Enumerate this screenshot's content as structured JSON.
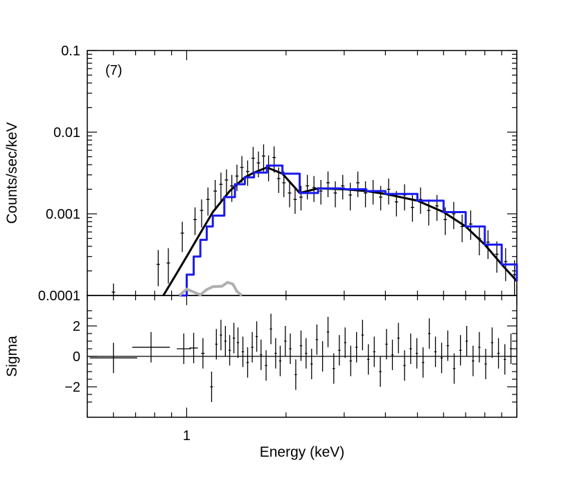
{
  "chart_data": {
    "type": "scatter",
    "x_scale": "log",
    "panel_label": "(7)",
    "xlabel": "Energy (keV)",
    "xlim": [
      0.5,
      10.0
    ],
    "x_tick_labels": [
      {
        "value": 1,
        "label": "1"
      }
    ],
    "top_panel": {
      "ylabel": "Counts/sec/keV",
      "y_scale": "log",
      "ylim": [
        0.0001,
        0.1
      ],
      "y_tick_labels": [
        {
          "value": 0.1,
          "label": "0.1"
        },
        {
          "value": 0.01,
          "label": "0.01"
        },
        {
          "value": 0.001,
          "label": "0.001"
        },
        {
          "value": 0.0001,
          "label": "0.0001"
        }
      ],
      "series": [
        {
          "name": "model-black",
          "color": "#000000",
          "style": "line",
          "x": [
            0.85,
            0.92,
            1.0,
            1.1,
            1.2,
            1.35,
            1.5,
            1.6,
            1.75,
            1.95,
            2.2,
            2.5,
            3.0,
            3.5,
            4.0,
            5.0,
            6.0,
            7.0,
            8.0,
            9.0,
            10.0
          ],
          "y": [
            0.0001,
            0.00017,
            0.0003,
            0.00058,
            0.00105,
            0.0019,
            0.0028,
            0.0032,
            0.0037,
            0.0031,
            0.0018,
            0.00205,
            0.002,
            0.0019,
            0.00175,
            0.00145,
            0.00105,
            0.0007,
            0.00042,
            0.00024,
            0.00015
          ]
        },
        {
          "name": "model-blue",
          "color": "#1a1aee",
          "style": "step",
          "x": [
            0.95,
            1.0,
            1.05,
            1.1,
            1.15,
            1.2,
            1.3,
            1.4,
            1.5,
            1.6,
            1.75,
            1.95,
            2.2,
            2.5,
            3.0,
            3.5,
            4.0,
            5.0,
            6.0,
            7.0,
            8.0,
            9.0,
            10.0
          ],
          "y": [
            0.0001,
            0.00018,
            0.0003,
            0.00048,
            0.0007,
            0.00095,
            0.0016,
            0.0023,
            0.0028,
            0.0032,
            0.0039,
            0.0031,
            0.0018,
            0.00205,
            0.002,
            0.0019,
            0.00175,
            0.00145,
            0.00105,
            0.0007,
            0.00042,
            0.00024,
            0.00015
          ]
        },
        {
          "name": "model-gray",
          "color": "#b0b0b0",
          "style": "line",
          "x": [
            0.95,
            1.0,
            1.05,
            1.1,
            1.15,
            1.2,
            1.28,
            1.33,
            1.38,
            1.42,
            1.47
          ],
          "y": [
            0.0001,
            0.00012,
            0.00011,
            0.000102,
            0.000118,
            0.000128,
            0.00013,
            0.000145,
            0.000138,
            0.000112,
            0.0001
          ]
        }
      ],
      "data_points": {
        "name": "observed",
        "x": [
          0.6,
          0.82,
          0.88,
          0.97,
          1.06,
          1.11,
          1.16,
          1.22,
          1.27,
          1.32,
          1.37,
          1.42,
          1.47,
          1.53,
          1.59,
          1.65,
          1.71,
          1.77,
          1.84,
          1.9,
          1.97,
          2.05,
          2.13,
          2.22,
          2.32,
          2.43,
          2.55,
          2.68,
          2.82,
          2.97,
          3.13,
          3.3,
          3.48,
          3.67,
          3.87,
          4.09,
          4.32,
          4.57,
          4.83,
          5.11,
          5.41,
          5.73,
          6.07,
          6.44,
          6.83,
          7.25,
          7.7,
          8.18,
          8.7,
          9.25,
          9.84
        ],
        "y": [
          0.00011,
          0.00024,
          0.00025,
          0.00058,
          0.00085,
          0.0011,
          0.0015,
          0.0019,
          0.0023,
          0.0026,
          0.0022,
          0.0029,
          0.0037,
          0.0033,
          0.0048,
          0.0042,
          0.0051,
          0.0038,
          0.0049,
          0.0027,
          0.0024,
          0.0018,
          0.0015,
          0.0016,
          0.0022,
          0.0021,
          0.0019,
          0.0024,
          0.0018,
          0.0022,
          0.0017,
          0.0024,
          0.0018,
          0.0019,
          0.0016,
          0.002,
          0.0014,
          0.0017,
          0.0012,
          0.0015,
          0.0011,
          0.00125,
          0.00085,
          0.001,
          0.0007,
          0.00075,
          0.0005,
          0.00045,
          0.00032,
          0.00026,
          0.00018
        ],
        "y_low": [
          0.0001,
          0.00013,
          0.00014,
          0.00034,
          0.00055,
          0.00068,
          0.00095,
          0.0012,
          0.0014,
          0.0017,
          0.0014,
          0.0019,
          0.0024,
          0.0022,
          0.0031,
          0.0028,
          0.0033,
          0.0025,
          0.0032,
          0.0018,
          0.0016,
          0.0012,
          0.001,
          0.0011,
          0.0015,
          0.0014,
          0.0013,
          0.0016,
          0.0012,
          0.0015,
          0.0011,
          0.0016,
          0.0012,
          0.0013,
          0.0011,
          0.0013,
          0.00093,
          0.0011,
          0.0008,
          0.001,
          0.00072,
          0.00082,
          0.00055,
          0.00065,
          0.00045,
          0.00048,
          0.00031,
          0.00028,
          0.00019,
          0.00015,
          0.0001
        ],
        "y_high": [
          0.00014,
          0.00036,
          0.00038,
          0.0008,
          0.0012,
          0.0015,
          0.0021,
          0.0026,
          0.0032,
          0.0035,
          0.003,
          0.004,
          0.0051,
          0.0045,
          0.0066,
          0.0058,
          0.0071,
          0.0052,
          0.0067,
          0.0037,
          0.0033,
          0.0025,
          0.0021,
          0.0022,
          0.003,
          0.0029,
          0.0026,
          0.0033,
          0.0025,
          0.003,
          0.0024,
          0.0033,
          0.0025,
          0.0026,
          0.0022,
          0.0027,
          0.0019,
          0.0023,
          0.0017,
          0.0021,
          0.0015,
          0.0017,
          0.0012,
          0.0014,
          0.00098,
          0.0011,
          0.0007,
          0.00063,
          0.00046,
          0.00038,
          0.00027
        ]
      }
    },
    "bottom_panel": {
      "ylabel": "Sigma",
      "y_scale": "linear",
      "ylim": [
        -4,
        4
      ],
      "y_tick_labels": [
        {
          "value": 2,
          "label": "2"
        },
        {
          "value": 0,
          "label": "0"
        },
        {
          "value": -2,
          "label": "−2"
        }
      ],
      "zero_line": true,
      "residuals": {
        "x": [
          0.6,
          0.78,
          0.98,
          1.05,
          1.12,
          1.19,
          1.23,
          1.27,
          1.31,
          1.35,
          1.39,
          1.43,
          1.48,
          1.53,
          1.58,
          1.63,
          1.68,
          1.74,
          1.8,
          1.86,
          1.92,
          1.99,
          2.06,
          2.14,
          2.22,
          2.3,
          2.39,
          2.48,
          2.58,
          2.68,
          2.79,
          2.9,
          3.02,
          3.14,
          3.27,
          3.41,
          3.55,
          3.7,
          3.86,
          4.03,
          4.2,
          4.38,
          4.57,
          4.77,
          4.98,
          5.2,
          5.43,
          5.67,
          5.92,
          6.18,
          6.46,
          6.75,
          7.05,
          7.37,
          7.7,
          8.05,
          8.42,
          8.8,
          9.2,
          9.6
        ],
        "y": [
          -0.1,
          0.6,
          0.5,
          0.55,
          0.2,
          -2.0,
          0.8,
          1.4,
          1.0,
          0.4,
          1.2,
          0.9,
          0.3,
          -0.4,
          0.6,
          1.3,
          0.1,
          -0.6,
          1.8,
          0.2,
          -0.3,
          1.0,
          0.5,
          -1.2,
          0.7,
          0.2,
          -0.5,
          1.1,
          0.0,
          1.6,
          -0.8,
          0.4,
          0.9,
          -0.3,
          0.6,
          1.4,
          -0.2,
          0.3,
          -1.0,
          0.8,
          0.1,
          1.2,
          -0.6,
          0.5,
          0.2,
          -0.4,
          1.5,
          0.3,
          -0.1,
          0.7,
          -0.8,
          0.4,
          1.0,
          -0.3,
          0.6,
          -0.5,
          0.9,
          0.2,
          -0.2,
          0.5
        ],
        "x_halfwidth_factor": [
          1.18,
          1.14,
          1.05,
          1.03,
          1.012,
          1.01,
          1.008,
          1.008,
          1.008,
          1.008,
          1.008,
          1.008,
          1.008,
          1.008,
          1.008,
          1.008,
          1.008,
          1.008,
          1.008,
          1.008,
          1.008,
          1.008,
          1.008,
          1.008,
          1.008,
          1.008,
          1.008,
          1.008,
          1.008,
          1.008,
          1.008,
          1.008,
          1.008,
          1.008,
          1.008,
          1.008,
          1.008,
          1.008,
          1.008,
          1.008,
          1.008,
          1.008,
          1.008,
          1.008,
          1.008,
          1.008,
          1.008,
          1.008,
          1.008,
          1.008,
          1.008,
          1.008,
          1.008,
          1.008,
          1.008,
          1.008,
          1.008,
          1.008,
          1.008,
          1.008
        ]
      }
    }
  }
}
